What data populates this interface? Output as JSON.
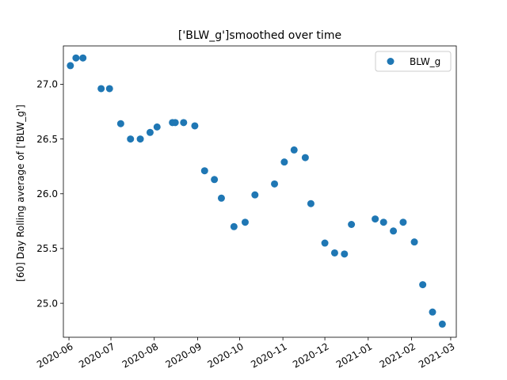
{
  "chart_data": {
    "type": "scatter",
    "title": "['BLW_g']smoothed over time",
    "xlabel": "",
    "ylabel": "[60] Day Rolling average of ['BLW_g']",
    "xlim": [
      "2020-05-28",
      "2021-03-05"
    ],
    "ylim": [
      24.69,
      27.35
    ],
    "x_ticks": [
      "2020-06",
      "2020-07",
      "2020-08",
      "2020-09",
      "2020-10",
      "2020-11",
      "2020-12",
      "2021-01",
      "2021-02",
      "2021-03"
    ],
    "x_tick_labels": [
      "2020-06",
      "2020-07",
      "2020-08",
      "2020-09",
      "2020-10",
      "2020-11",
      "2020-12",
      "2021-01",
      "2021-02",
      "2021-03"
    ],
    "y_ticks": [
      25.0,
      25.5,
      26.0,
      26.5,
      27.0
    ],
    "y_tick_labels": [
      "25.0",
      "25.5",
      "26.0",
      "26.5",
      "27.0"
    ],
    "grid": false,
    "legend_loc": "upper right",
    "color": "#1f77b4",
    "series": [
      {
        "name": "BLW_g",
        "points": [
          {
            "x": "2020-06-02",
            "y": 27.17
          },
          {
            "x": "2020-06-06",
            "y": 27.24
          },
          {
            "x": "2020-06-11",
            "y": 27.24
          },
          {
            "x": "2020-06-24",
            "y": 26.96
          },
          {
            "x": "2020-06-30",
            "y": 26.96
          },
          {
            "x": "2020-07-08",
            "y": 26.64
          },
          {
            "x": "2020-07-15",
            "y": 26.5
          },
          {
            "x": "2020-07-22",
            "y": 26.5
          },
          {
            "x": "2020-07-29",
            "y": 26.56
          },
          {
            "x": "2020-08-03",
            "y": 26.61
          },
          {
            "x": "2020-08-14",
            "y": 26.65
          },
          {
            "x": "2020-08-16",
            "y": 26.65
          },
          {
            "x": "2020-08-22",
            "y": 26.65
          },
          {
            "x": "2020-08-30",
            "y": 26.62
          },
          {
            "x": "2020-09-06",
            "y": 26.21
          },
          {
            "x": "2020-09-13",
            "y": 26.13
          },
          {
            "x": "2020-09-18",
            "y": 25.96
          },
          {
            "x": "2020-09-27",
            "y": 25.7
          },
          {
            "x": "2020-10-05",
            "y": 25.74
          },
          {
            "x": "2020-10-12",
            "y": 25.99
          },
          {
            "x": "2020-10-26",
            "y": 26.09
          },
          {
            "x": "2020-11-02",
            "y": 26.29
          },
          {
            "x": "2020-11-09",
            "y": 26.4
          },
          {
            "x": "2020-11-17",
            "y": 26.33
          },
          {
            "x": "2020-11-21",
            "y": 25.91
          },
          {
            "x": "2020-12-01",
            "y": 25.55
          },
          {
            "x": "2020-12-08",
            "y": 25.46
          },
          {
            "x": "2020-12-15",
            "y": 25.45
          },
          {
            "x": "2020-12-20",
            "y": 25.72
          },
          {
            "x": "2021-01-06",
            "y": 25.77
          },
          {
            "x": "2021-01-12",
            "y": 25.74
          },
          {
            "x": "2021-01-19",
            "y": 25.66
          },
          {
            "x": "2021-01-26",
            "y": 25.74
          },
          {
            "x": "2021-02-03",
            "y": 25.56
          },
          {
            "x": "2021-02-09",
            "y": 25.17
          },
          {
            "x": "2021-02-16",
            "y": 24.92
          },
          {
            "x": "2021-02-23",
            "y": 24.81
          }
        ]
      }
    ]
  }
}
